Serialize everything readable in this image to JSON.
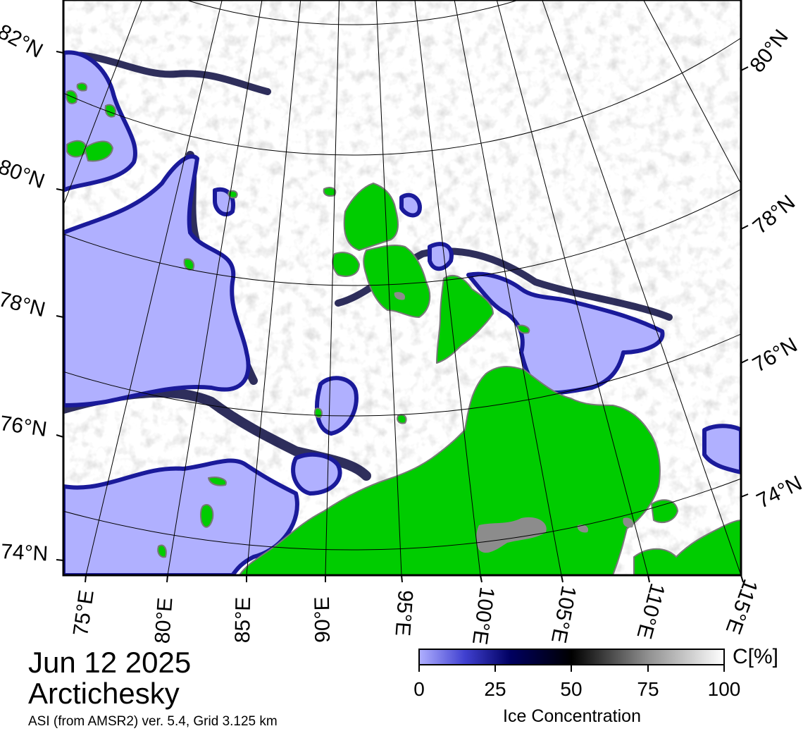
{
  "title": {
    "date": "Jun 12 2025",
    "region": "Arctichesky",
    "source": "ASI (from AMSR2) ver. 5.4,  Grid 3.125 km"
  },
  "latitude_labels_left": [
    "82°N",
    "80°N",
    "78°N",
    "76°N",
    "74°N"
  ],
  "latitude_labels_right": [
    "80°N",
    "78°N",
    "76°N",
    "74°N"
  ],
  "longitude_labels": [
    "75°E",
    "80°E",
    "85°E",
    "90°E",
    "95°E",
    "100°E",
    "105°E",
    "110°E",
    "115°E"
  ],
  "colorbar": {
    "unit": "C[%]",
    "title": "Ice Concentration",
    "min": 0,
    "max": 100,
    "ticks": [
      "0",
      "25",
      "50",
      "75",
      "100"
    ],
    "stops": [
      {
        "value": 0,
        "color": "#b0b0ff"
      },
      {
        "value": 15,
        "color": "#4040d0"
      },
      {
        "value": 30,
        "color": "#000060"
      },
      {
        "value": 50,
        "color": "#000000"
      },
      {
        "value": 75,
        "color": "#909090"
      },
      {
        "value": 100,
        "color": "#ffffff"
      }
    ]
  },
  "colors": {
    "open_water": "#b0b0ff",
    "land": "#00cc00",
    "land_ice": "#8c8c8c",
    "ice_edge": "#0a0a7a",
    "full_ice": "#ffffff"
  }
}
